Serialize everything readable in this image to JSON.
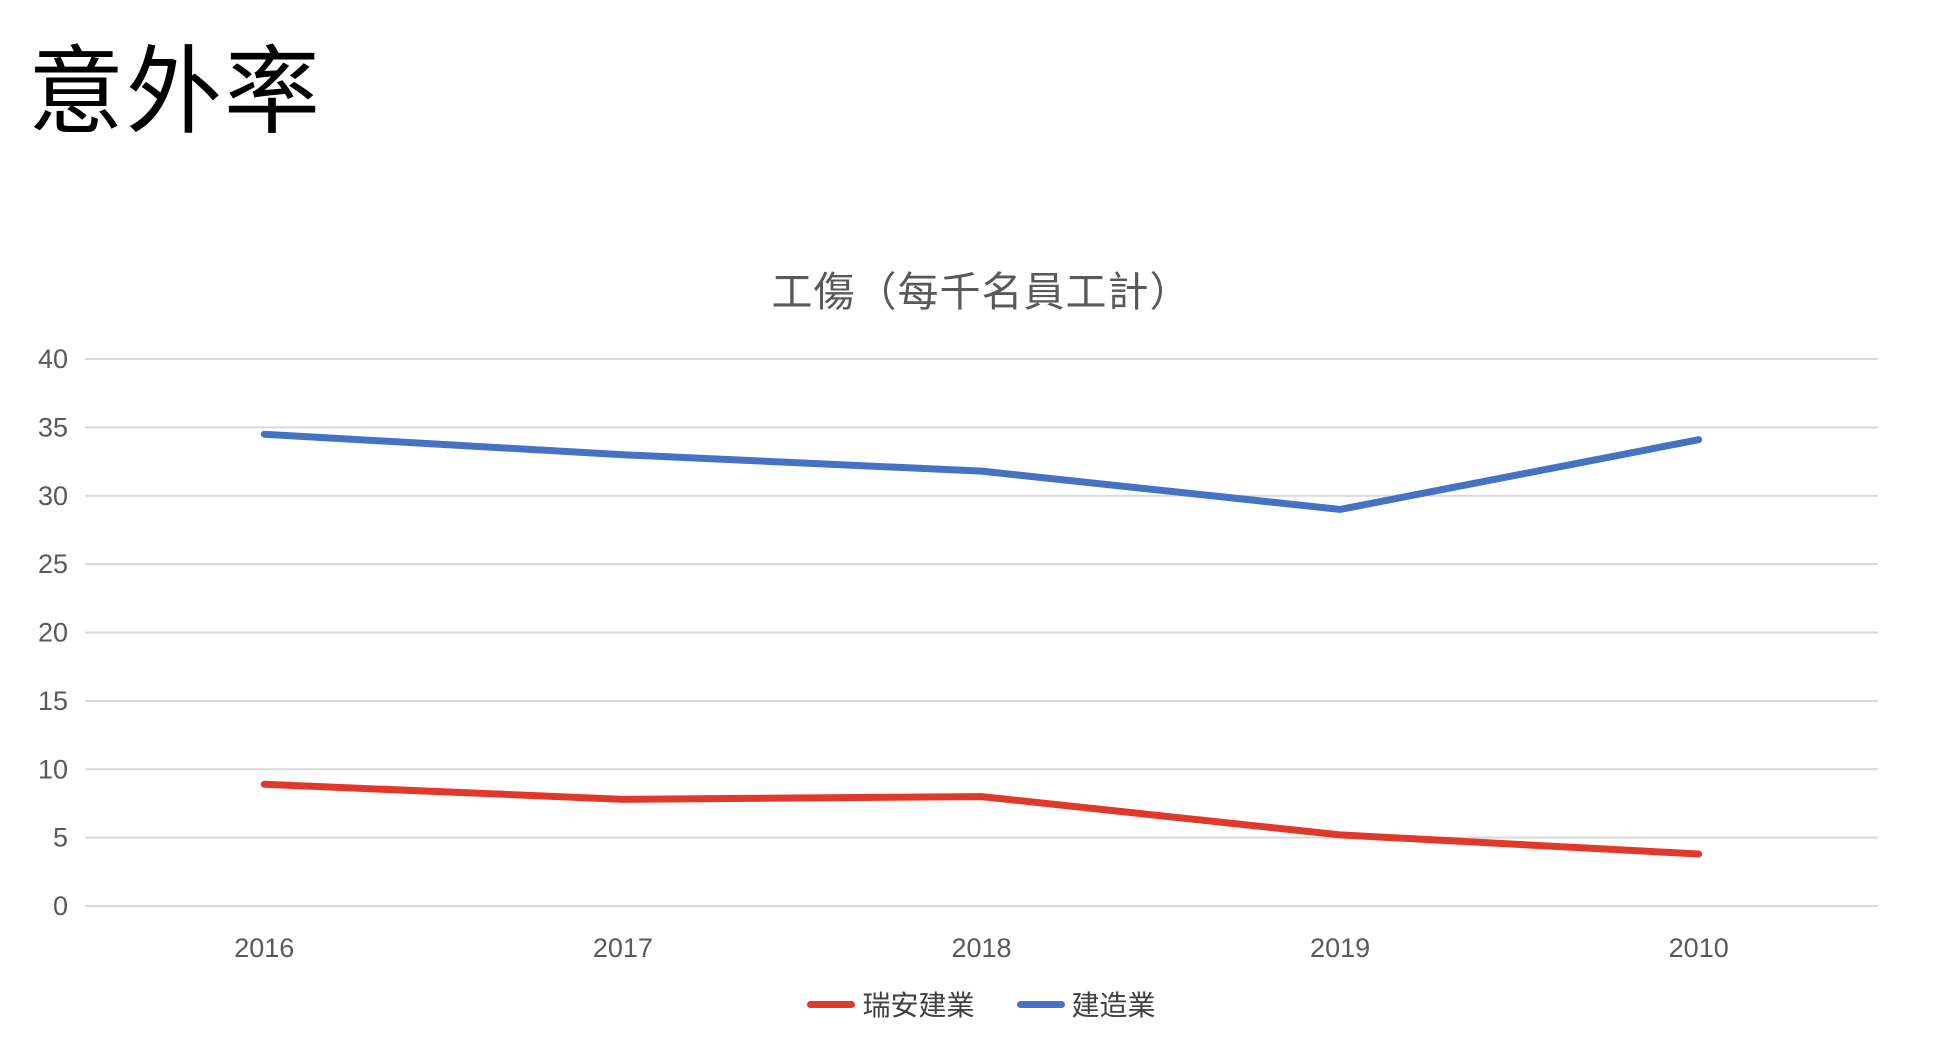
{
  "page": {
    "title": "意外率"
  },
  "chart_data": {
    "type": "line",
    "title": "工傷（每千名員工計）",
    "categories": [
      "2016",
      "2017",
      "2018",
      "2019",
      "2010"
    ],
    "series": [
      {
        "name": "瑞安建業",
        "color": "#e0392b",
        "values": [
          8.9,
          7.8,
          8.0,
          5.2,
          3.8
        ]
      },
      {
        "name": "建造業",
        "color": "#4472c4",
        "values": [
          34.5,
          33.0,
          31.8,
          29.0,
          34.1
        ]
      }
    ],
    "ylim": [
      0,
      40
    ],
    "yticks": [
      0,
      5,
      10,
      15,
      20,
      25,
      30,
      35,
      40
    ],
    "grid": "horizontal",
    "gridline_color": "#d9d9d9",
    "axis_label_color": "#595959",
    "legend_position": "bottom"
  }
}
